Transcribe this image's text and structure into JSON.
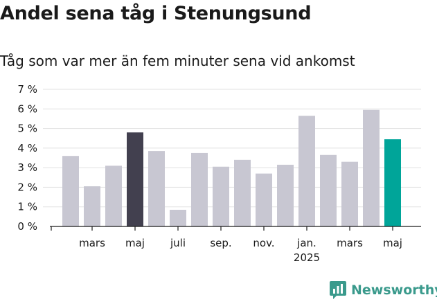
{
  "header": {
    "title": "Andel sena tåg i Stenungsund",
    "subtitle": "Tåg som var mer än fem minuter sena vid ankomst"
  },
  "brand": {
    "name": "Newsworthy",
    "icon": "bar-chart-logo-icon",
    "color": "#3a9a8c"
  },
  "colors": {
    "default_bar": "#c8c7d2",
    "highlight_bar": "#42404f",
    "latest_bar": "#00a599"
  },
  "chart_data": {
    "type": "bar",
    "title": "Andel sena tåg i Stenungsund",
    "subtitle": "Tåg som var mer än fem minuter sena vid ankomst",
    "xlabel": "",
    "ylabel": "",
    "ylim": [
      0,
      7
    ],
    "yticks": [
      0,
      1,
      2,
      3,
      4,
      5,
      6,
      7
    ],
    "ytick_labels": [
      "0 %",
      "1 %",
      "2 %",
      "3 %",
      "4 %",
      "5 %",
      "6 %",
      "7 %"
    ],
    "grid": true,
    "categories": [
      "2024-02",
      "2024-03",
      "2024-04",
      "2024-05",
      "2024-06",
      "2024-07",
      "2024-08",
      "2024-09",
      "2024-10",
      "2024-11",
      "2024-12",
      "2025-01",
      "2025-02",
      "2025-03",
      "2025-04",
      "2025-05"
    ],
    "values": [
      3.6,
      2.05,
      3.1,
      4.8,
      3.85,
      0.85,
      3.75,
      3.05,
      3.4,
      2.7,
      3.15,
      5.65,
      3.65,
      3.3,
      5.95,
      4.45
    ],
    "highlight": {
      "2024-05": "#42404f",
      "2025-05": "#00a599"
    },
    "xtick_labels": [
      {
        "category": "2024-03",
        "label": "mars"
      },
      {
        "category": "2024-05",
        "label": "maj"
      },
      {
        "category": "2024-07",
        "label": "juli"
      },
      {
        "category": "2024-09",
        "label": "sep."
      },
      {
        "category": "2024-11",
        "label": "nov."
      },
      {
        "category": "2025-01",
        "label": "jan.",
        "label2": "2025"
      },
      {
        "category": "2025-03",
        "label": "mars"
      },
      {
        "category": "2025-05",
        "label": "maj"
      }
    ]
  }
}
